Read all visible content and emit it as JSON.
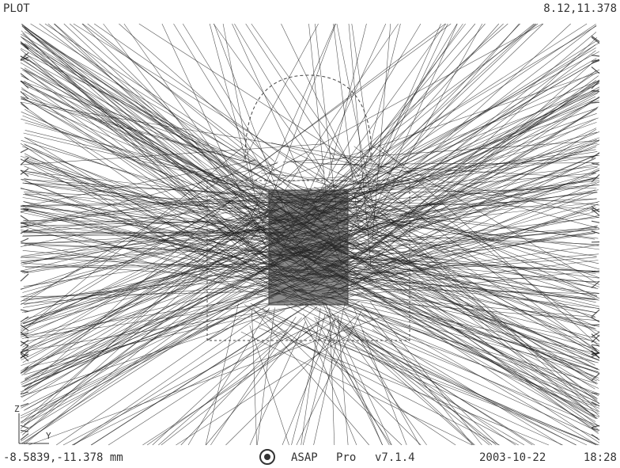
{
  "header": {
    "title": "PLOT",
    "corner_max": "8.12,11.378"
  },
  "footer": {
    "corner_min": "-8.5839,-11.378 mm",
    "product": "ASAP",
    "edition": "Pro",
    "version": "v7.1.4",
    "date": "2003-10-22",
    "time": "18:28"
  },
  "axes": {
    "vertical": "Z",
    "horizontal": "Y"
  }
}
